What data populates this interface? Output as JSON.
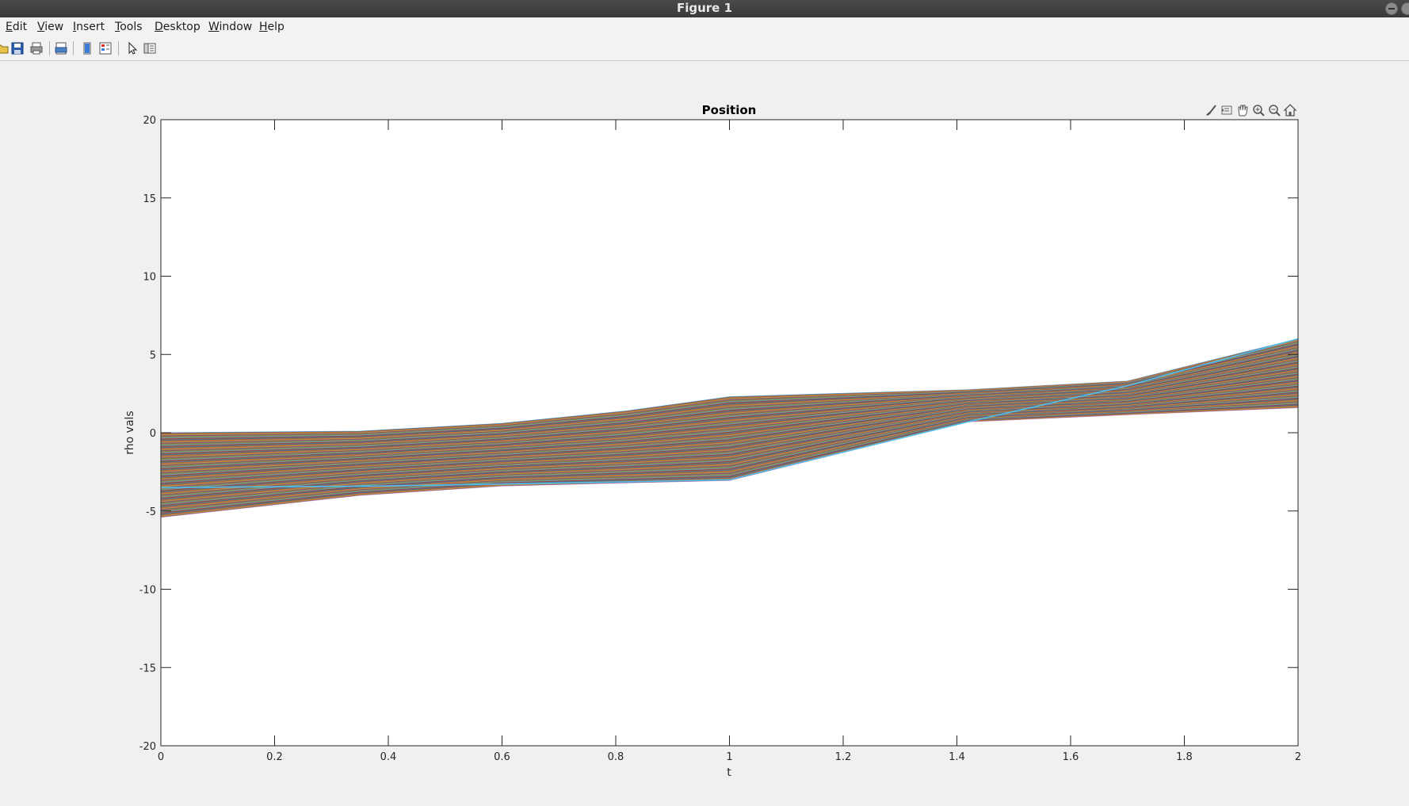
{
  "window": {
    "title": "Figure 1"
  },
  "menu": {
    "items": [
      {
        "label": "Edit",
        "accel": "E",
        "rest": "dit"
      },
      {
        "label": "View",
        "accel": "V",
        "rest": "iew"
      },
      {
        "label": "Insert",
        "accel": "I",
        "rest": "nsert"
      },
      {
        "label": "Tools",
        "accel": "T",
        "rest": "ools"
      },
      {
        "label": "Desktop",
        "accel": "D",
        "rest": "esktop"
      },
      {
        "label": "Window",
        "accel": "W",
        "rest": "indow"
      },
      {
        "label": "Help",
        "accel": "H",
        "rest": "elp"
      }
    ]
  },
  "toolbar": {
    "icons": [
      "open-icon",
      "save-icon",
      "print-icon",
      "print-preview-icon",
      "link-plot-icon",
      "insert-colorbar-icon",
      "select-arrow-icon",
      "property-editor-icon"
    ]
  },
  "axes_toolbar": {
    "icons": [
      "brush-icon",
      "datatip-icon",
      "pan-icon",
      "zoom-in-icon",
      "zoom-out-icon",
      "home-icon"
    ]
  },
  "colors": {
    "band_fill": "#8f7760",
    "band_stripes": [
      "#0072bd",
      "#d95319",
      "#edb120",
      "#7e2f8e",
      "#77ac30",
      "#4dbeee",
      "#a2142f"
    ],
    "edge_line": "#4dbeee"
  },
  "chart_data": {
    "type": "line",
    "title": "Position",
    "xlabel": "t",
    "ylabel": "rho vals",
    "xlim": [
      0,
      2
    ],
    "ylim": [
      -20,
      20
    ],
    "xticks": [
      0,
      0.2,
      0.4,
      0.6,
      0.8,
      1,
      1.2,
      1.4,
      1.6,
      1.8,
      2
    ],
    "xtick_labels": [
      "0",
      "0.2",
      "0.4",
      "0.6",
      "0.8",
      "1",
      "1.2",
      "1.4",
      "1.6",
      "1.8",
      "2"
    ],
    "yticks": [
      20,
      15,
      10,
      5,
      0,
      -5,
      -10,
      -15,
      -20
    ],
    "ytick_labels": [
      "20",
      "15",
      "10",
      "5",
      "0",
      "-5",
      "-10",
      "-15",
      "-20"
    ],
    "grid": false,
    "band_upper": {
      "x": [
        0,
        0.35,
        0.6,
        0.82,
        1.0,
        1.42,
        1.7,
        2.0
      ],
      "y": [
        0,
        0.1,
        0.6,
        1.4,
        2.3,
        2.75,
        3.3,
        6.0
      ]
    },
    "band_lower": {
      "x": [
        0,
        0.35,
        0.6,
        0.82,
        1.0,
        1.42,
        1.7,
        2.0
      ],
      "y": [
        -5.4,
        -4.0,
        -3.4,
        -3.2,
        -3.05,
        0.7,
        1.15,
        1.6
      ]
    },
    "boundary_line": {
      "x": [
        0,
        0.4,
        0.8,
        1.0,
        1.42,
        1.7,
        2.0
      ],
      "y": [
        -3.5,
        -3.4,
        -3.15,
        -3.0,
        0.7,
        3.0,
        6.0
      ]
    },
    "num_series_approx": 400
  }
}
